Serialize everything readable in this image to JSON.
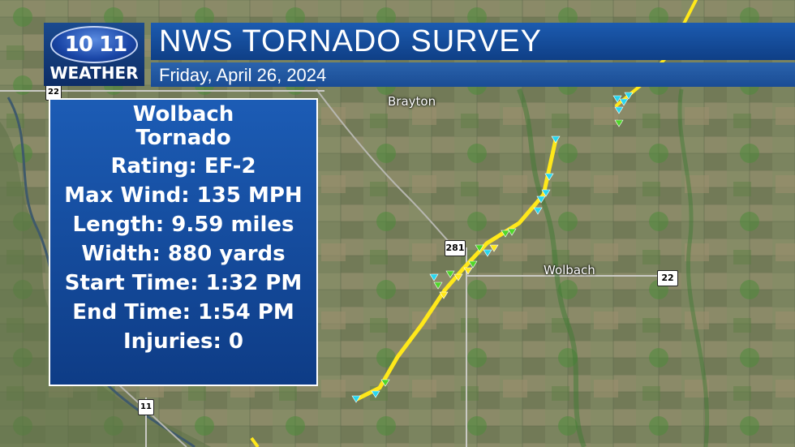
{
  "logo": {
    "number": "10 11",
    "brand": "WEATHER"
  },
  "header": {
    "title": "NWS TORNADO SURVEY",
    "date": "Friday, April 26, 2024"
  },
  "info": {
    "name_line1": "Wolbach",
    "name_line2": "Tornado",
    "rating": "Rating: EF-2",
    "max_wind": "Max Wind: 135 MPH",
    "length": "Length: 9.59 miles",
    "width": "Width: 880 yards",
    "start_time": "Start Time: 1:32 PM",
    "end_time": "End Time: 1:54 PM",
    "injuries": "Injuries: 0"
  },
  "map": {
    "places": {
      "brayton": "Brayton",
      "wolbach": "Wolbach"
    },
    "shields": {
      "hwy281": "281",
      "hwy22_east": "22",
      "hwy22_west": "22",
      "hwy11": "11"
    },
    "colors": {
      "track": "#ffe81a",
      "marker_cyan": "#27d7f0",
      "marker_green": "#4fd62a"
    }
  }
}
